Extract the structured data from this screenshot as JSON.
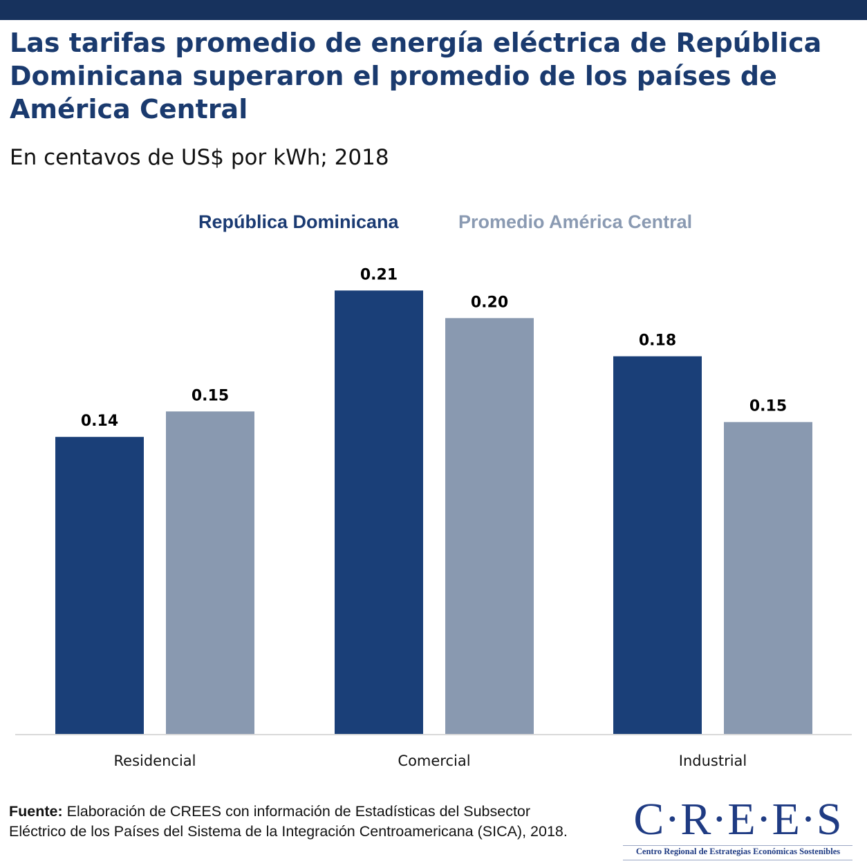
{
  "header": {
    "title": "Las tarifas promedio de energía eléctrica de República Dominicana superaron el promedio de los países de América Central",
    "subtitle": "En centavos de US$ por kWh; 2018"
  },
  "legend": {
    "series_1": "República Dominicana",
    "series_2": "Promedio América Central"
  },
  "colors": {
    "series_1": "#1a3f78",
    "series_2": "#8999b0",
    "top_bar": "#17325d",
    "title": "#1a3a6e",
    "axis": "#d9d9d9"
  },
  "chart_data": {
    "type": "bar",
    "title": "Las tarifas promedio de energía eléctrica de República Dominicana superaron el promedio de los países de América Central",
    "subtitle": "En centavos de US$ por kWh; 2018",
    "xlabel": "",
    "ylabel": "",
    "categories": [
      "Residencial",
      "Comercial",
      "Industrial"
    ],
    "series": [
      {
        "name": "República Dominicana",
        "values": [
          0.14,
          0.21,
          0.18
        ],
        "labels": [
          "0.14",
          "0.21",
          "0.18"
        ]
      },
      {
        "name": "Promedio América Central",
        "values": [
          0.15,
          0.2,
          0.15
        ],
        "labels": [
          "0.15",
          "0.20",
          "0.15"
        ]
      }
    ],
    "estimated_values": [
      [
        0.14,
        0.209,
        0.178
      ],
      [
        0.152,
        0.196,
        0.147
      ]
    ],
    "ylim": [
      0,
      0.23
    ],
    "grid": false,
    "legend_position": "top"
  },
  "source": {
    "label": "Fuente:",
    "text": " Elaboración de CREES con información de Estadísticas del Subsector Eléctrico de los Países del Sistema de la Integración Centroamericana (SICA), 2018."
  },
  "logo": {
    "name": "C·R·E·E·S",
    "tagline": "Centro Regional de Estrategias Económicas Sostenibles"
  }
}
